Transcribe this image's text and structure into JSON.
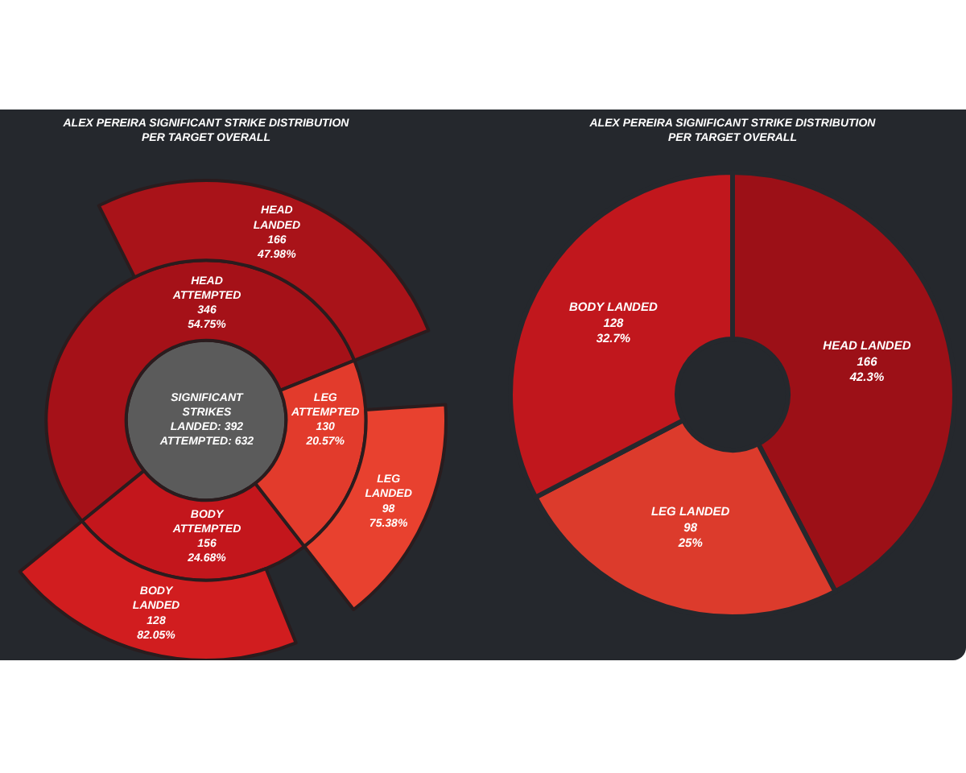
{
  "chart_data": [
    {
      "type": "other",
      "title": "ALEX PEREIRA SIGNIFICANT STRIKE DISTRIBUTION\nPER TARGET OVERALL",
      "categories": [
        "HEAD",
        "BODY",
        "LEG"
      ],
      "series": [
        {
          "name": "ATTEMPTED",
          "values": [
            346,
            156,
            130
          ],
          "value_labels": [
            "346\n54.75%",
            "156\n24.68%",
            "130\n20.57%"
          ],
          "colors": [
            "#a51118",
            "#c3161c",
            "#e23b2c"
          ]
        },
        {
          "name": "LANDED",
          "values": [
            166,
            128,
            98
          ],
          "value_labels": [
            "166\n47.98%",
            "128\n82.05%",
            "98\n75.38%"
          ],
          "colors": [
            "#a91319",
            "#d11d1f",
            "#e8412f"
          ]
        }
      ],
      "annotations": [
        "SIGNIFICANT\nSTRIKES\nLANDED: 392\nATTEMPTED: 632"
      ]
    },
    {
      "type": "donut",
      "title": "ALEX PEREIRA SIGNIFICANT STRIKE DISTRIBUTION\nPER TARGET OVERALL",
      "categories": [
        "HEAD LANDED",
        "LEG LANDED",
        "BODY LANDED"
      ],
      "values": [
        166,
        98,
        128
      ],
      "value_labels": [
        "166\n42.3%",
        "98\n25%",
        "128\n32.7%"
      ],
      "colors": [
        "#9c1017",
        "#dc3b2c",
        "#c1171d"
      ]
    }
  ]
}
